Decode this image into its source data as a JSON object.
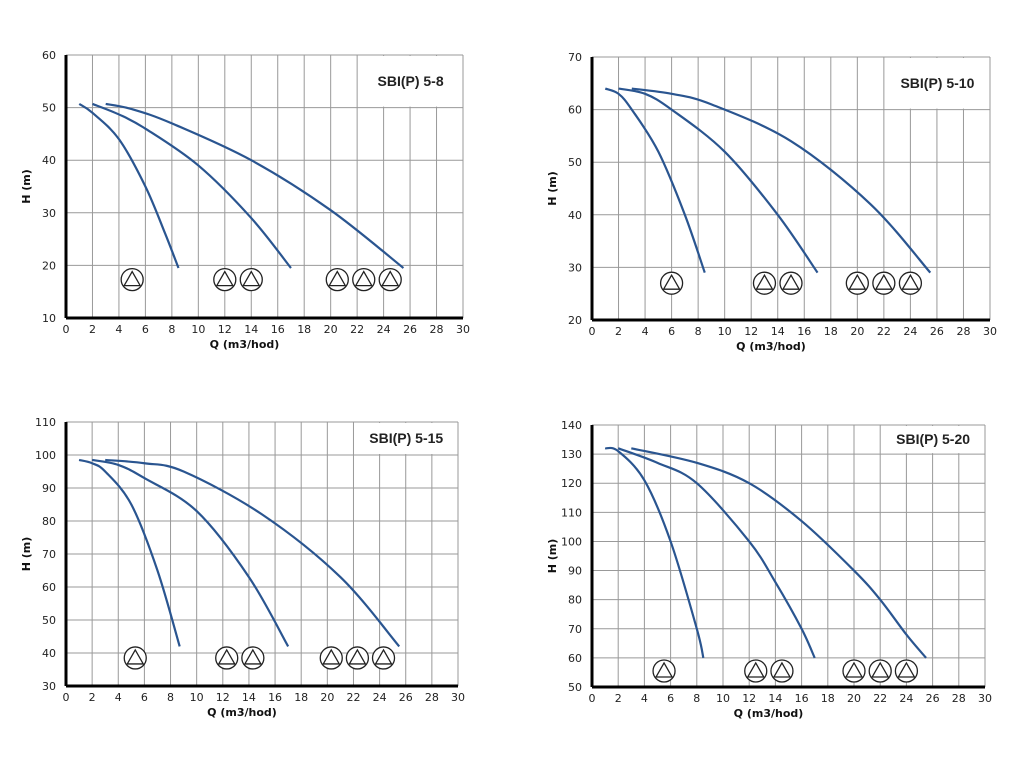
{
  "curve_color": "#2a5590",
  "chart_data": [
    {
      "type": "line",
      "title": "SBI(P) 5-8",
      "xlabel": "Q (m3/hod)",
      "ylabel": "H (m)",
      "xlim": [
        0,
        30
      ],
      "ylim": [
        10,
        60
      ],
      "xstep": 2,
      "ystep": 10,
      "grid": true,
      "series": [
        {
          "points": [
            [
              1,
              50.7
            ],
            [
              2,
              49
            ],
            [
              4,
              44
            ],
            [
              6,
              35
            ],
            [
              7.5,
              26
            ],
            [
              8.5,
              19.5
            ]
          ]
        },
        {
          "points": [
            [
              2,
              50.7
            ],
            [
              4,
              48.7
            ],
            [
              6,
              46
            ],
            [
              10,
              39
            ],
            [
              14,
              29
            ],
            [
              17,
              19.5
            ]
          ]
        },
        {
          "points": [
            [
              3,
              50.7
            ],
            [
              5,
              49.7
            ],
            [
              8,
              47
            ],
            [
              14,
              40
            ],
            [
              20,
              30.5
            ],
            [
              25.5,
              19.5
            ]
          ]
        }
      ],
      "pump_icons": {
        "h": 17.3,
        "q": [
          5,
          12,
          14,
          20.5,
          22.5,
          24.5
        ]
      }
    },
    {
      "type": "line",
      "title": "SBI(P) 5-10",
      "xlabel": "Q (m3/hod)",
      "ylabel": "H (m)",
      "xlim": [
        0,
        30
      ],
      "ylim": [
        20,
        70
      ],
      "xstep": 2,
      "ystep": 10,
      "grid": true,
      "series": [
        {
          "points": [
            [
              1,
              64
            ],
            [
              2,
              63
            ],
            [
              3,
              60
            ],
            [
              5,
              52
            ],
            [
              7,
              40
            ],
            [
              8.5,
              29
            ]
          ]
        },
        {
          "points": [
            [
              2,
              64
            ],
            [
              4,
              63
            ],
            [
              6,
              60
            ],
            [
              10,
              52
            ],
            [
              14,
              40
            ],
            [
              17,
              29
            ]
          ]
        },
        {
          "points": [
            [
              3,
              64
            ],
            [
              6,
              63
            ],
            [
              9,
              61
            ],
            [
              15,
              54
            ],
            [
              21,
              42
            ],
            [
              25.5,
              29
            ]
          ]
        }
      ],
      "pump_icons": {
        "h": 27,
        "q": [
          6,
          13,
          15,
          20,
          22,
          24
        ]
      }
    },
    {
      "type": "line",
      "title": "SBI(P) 5-15",
      "xlabel": "Q (m3/hod)",
      "ylabel": "H (m)",
      "xlim": [
        0,
        30
      ],
      "ylim": [
        30,
        110
      ],
      "xstep": 2,
      "ystep": 10,
      "grid": true,
      "series": [
        {
          "points": [
            [
              1,
              98.5
            ],
            [
              2,
              97.5
            ],
            [
              3,
              95
            ],
            [
              5,
              85
            ],
            [
              7,
              65
            ],
            [
              8.7,
              42
            ]
          ]
        },
        {
          "points": [
            [
              2,
              98.5
            ],
            [
              4,
              97
            ],
            [
              6,
              93
            ],
            [
              10,
              83
            ],
            [
              14,
              63
            ],
            [
              17,
              42
            ]
          ]
        },
        {
          "points": [
            [
              3,
              98.5
            ],
            [
              6,
              97.5
            ],
            [
              9,
              95
            ],
            [
              15,
              82
            ],
            [
              21,
              63
            ],
            [
              25.5,
              42
            ]
          ]
        }
      ],
      "pump_icons": {
        "h": 38.5,
        "q": [
          5.3,
          12.3,
          14.3,
          20.3,
          22.3,
          24.3
        ]
      }
    },
    {
      "type": "line",
      "title": "SBI(P) 5-20",
      "xlabel": "Q (m3/hod)",
      "ylabel": "H (m)",
      "xlim": [
        0,
        30
      ],
      "ylim": [
        50,
        140
      ],
      "xstep": 2,
      "ystep": 10,
      "grid": true,
      "series": [
        {
          "points": [
            [
              1,
              132
            ],
            [
              2,
              131
            ],
            [
              4,
              121
            ],
            [
              6,
              100
            ],
            [
              8,
              70
            ],
            [
              8.5,
              60
            ]
          ]
        },
        {
          "points": [
            [
              2,
              132
            ],
            [
              5,
              127
            ],
            [
              8,
              120
            ],
            [
              12,
              100
            ],
            [
              14,
              86
            ],
            [
              16,
              70
            ],
            [
              17,
              60
            ]
          ]
        },
        {
          "points": [
            [
              3,
              132
            ],
            [
              8,
              127
            ],
            [
              12,
              120
            ],
            [
              16,
              107
            ],
            [
              20,
              90
            ],
            [
              22,
              80
            ],
            [
              24,
              68
            ],
            [
              25.5,
              60
            ]
          ]
        }
      ],
      "pump_icons": {
        "h": 55.5,
        "q": [
          5.5,
          12.5,
          14.5,
          20,
          22,
          24
        ]
      }
    }
  ]
}
